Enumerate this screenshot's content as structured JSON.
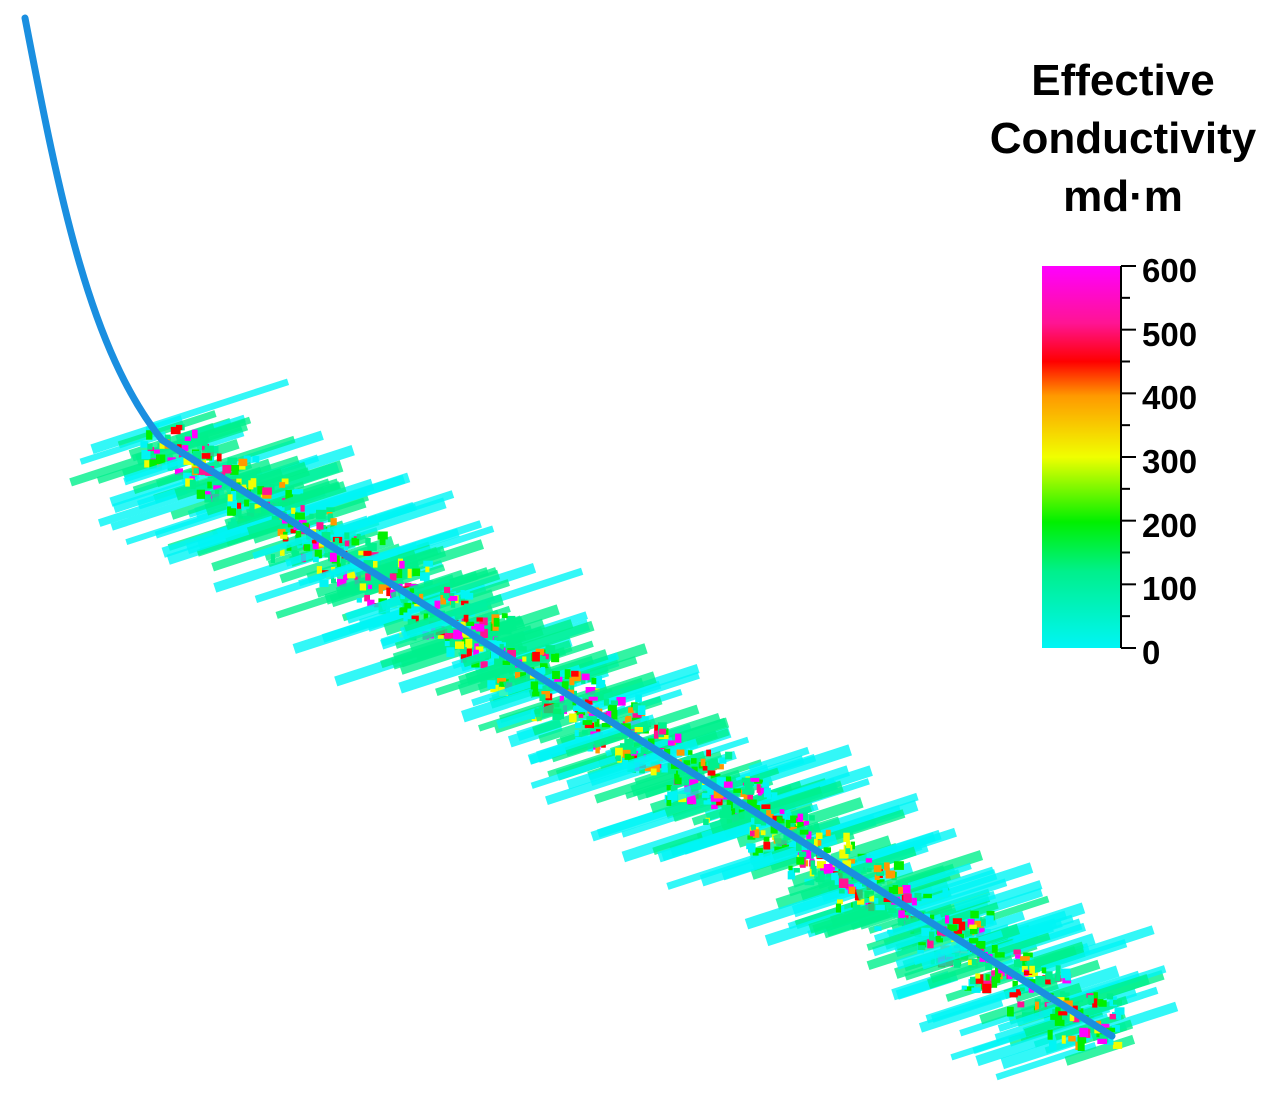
{
  "legend": {
    "title_line1": "Effective",
    "title_line2": "Conductivity",
    "unit": "md·m",
    "ticks": [
      "600",
      "500",
      "400",
      "300",
      "200",
      "100",
      "0"
    ],
    "range": [
      0,
      600
    ],
    "colors": [
      "#00f5f5",
      "#00f08c",
      "#00f000",
      "#f0ff00",
      "#ff9900",
      "#ff0000",
      "#ff1493",
      "#ff00ff"
    ]
  },
  "wellbore": {
    "color": "#1a8fe0"
  }
}
